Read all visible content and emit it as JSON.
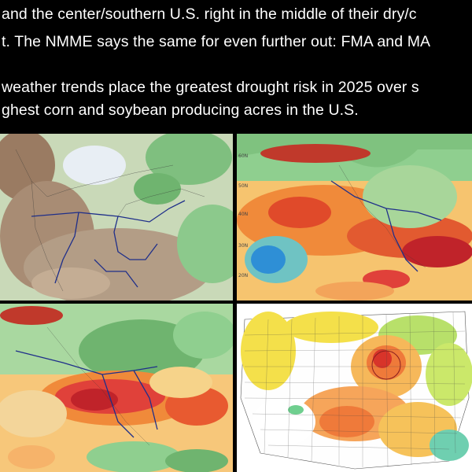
{
  "post": {
    "lines": [
      "and the center/southern U.S. right in the middle of their dry/c",
      "t.  The NMME says the same for even further out: FMA and MA",
      "weather trends place the greatest drought risk in 2025 over s",
      "ghest corn and soybean producing acres in the U.S."
    ]
  },
  "maps": {
    "top_left": {
      "kind": "precip-anomaly-north-america"
    },
    "top_right": {
      "kind": "temp-anomaly-pacific-north-america",
      "lat_labels": [
        "60N",
        "50N",
        "40N",
        "30N",
        "20N"
      ]
    },
    "bottom_left": {
      "kind": "temp-anomaly-north-america"
    },
    "bottom_right": {
      "kind": "drought-risk-us-counties"
    }
  },
  "colors": {
    "background": "#000000",
    "text": "#ffffff",
    "wet_green": "#6fb46f",
    "dry_brown": "#a78b73",
    "warm_orange": "#f28a3c",
    "hot_red": "#d7262a",
    "cool_blue": "#2e8fd6"
  }
}
